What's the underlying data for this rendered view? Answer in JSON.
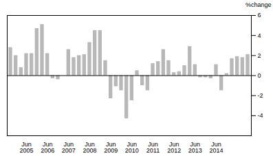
{
  "chart_data": {
    "type": "bar",
    "ylabel": "%change",
    "categories": [
      null,
      null,
      null,
      "Jun\n2005",
      null,
      null,
      null,
      "Jun\n2006",
      null,
      null,
      null,
      "Jun\n2007",
      null,
      null,
      null,
      "Jun\n2008",
      null,
      null,
      null,
      "Jun\n2009",
      null,
      null,
      null,
      "Jun\n2010",
      null,
      null,
      null,
      "Jun\n2011",
      null,
      null,
      null,
      "Jun\n2012",
      null,
      null,
      null,
      "Jun\n2013",
      null,
      null,
      null,
      "Jun\n2014",
      null,
      null,
      null,
      null,
      null,
      null
    ],
    "values": [
      2.8,
      2.0,
      0.8,
      2.2,
      2.2,
      4.7,
      5.1,
      2.2,
      -0.3,
      -0.4,
      0.0,
      2.6,
      1.8,
      2.0,
      2.1,
      3.3,
      4.5,
      4.5,
      1.5,
      -2.3,
      -1.1,
      -1.5,
      -4.3,
      -2.5,
      0.5,
      -1.0,
      -1.5,
      1.2,
      1.4,
      2.6,
      1.5,
      0.3,
      0.4,
      1.0,
      2.9,
      1.1,
      -0.2,
      -0.2,
      -0.3,
      1.1,
      -1.5,
      0.2,
      1.7,
      1.9,
      1.8,
      2.1
    ],
    "color": "#b8b8b8",
    "ylim": [
      -6,
      6
    ],
    "yticks": [
      -4,
      -2,
      0,
      2,
      4,
      6
    ],
    "grid": false
  }
}
